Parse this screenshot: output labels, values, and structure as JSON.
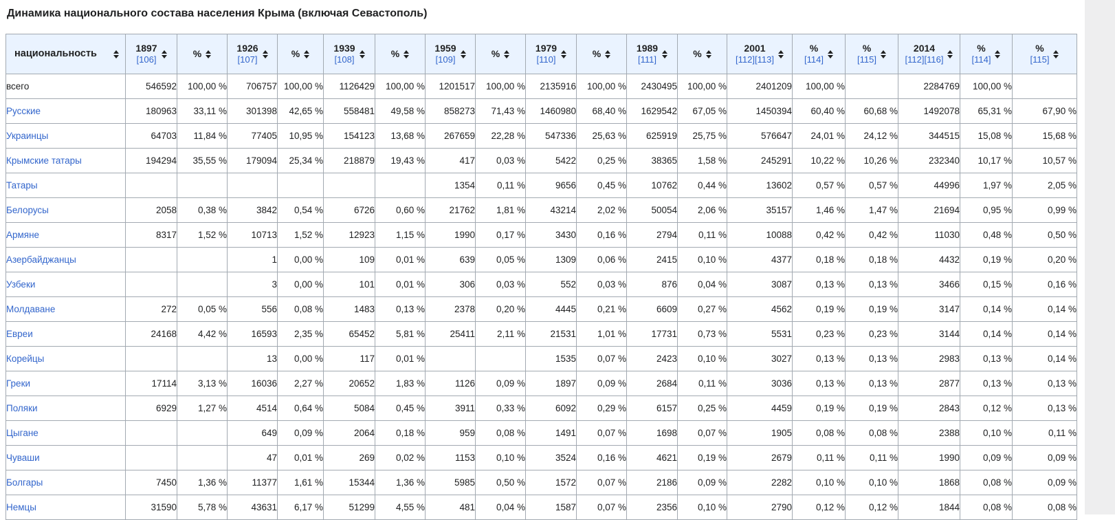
{
  "title": "Динамика национального состава населения Крыма (включая Севастополь)",
  "colors": {
    "link": "#3366cc",
    "header_bg": "#eaf3ff",
    "border": "#a2a9b1"
  },
  "table": {
    "columns": [
      {
        "label": "национальность",
        "ref": ""
      },
      {
        "label": "1897",
        "ref": "[106]"
      },
      {
        "label": "%",
        "ref": ""
      },
      {
        "label": "1926",
        "ref": "[107]"
      },
      {
        "label": "%",
        "ref": ""
      },
      {
        "label": "1939",
        "ref": "[108]"
      },
      {
        "label": "%",
        "ref": ""
      },
      {
        "label": "1959",
        "ref": "[109]"
      },
      {
        "label": "%",
        "ref": ""
      },
      {
        "label": "1979",
        "ref": "[110]"
      },
      {
        "label": "%",
        "ref": ""
      },
      {
        "label": "1989",
        "ref": "[111]"
      },
      {
        "label": "%",
        "ref": ""
      },
      {
        "label": "2001",
        "ref": "[112][113]"
      },
      {
        "label": "%",
        "ref": "[114]"
      },
      {
        "label": "%",
        "ref": "[115]"
      },
      {
        "label": "2014",
        "ref": "[112][116]"
      },
      {
        "label": "%",
        "ref": "[114]"
      },
      {
        "label": "%",
        "ref": "[115]"
      }
    ],
    "rows": [
      {
        "name": "всего",
        "link": false,
        "values": [
          "546592",
          "100,00 %",
          "706757",
          "100,00 %",
          "1126429",
          "100,00 %",
          "1201517",
          "100,00 %",
          "2135916",
          "100,00 %",
          "2430495",
          "100,00 %",
          "2401209",
          "100,00 %",
          "",
          "2284769",
          "100,00 %",
          ""
        ]
      },
      {
        "name": "Русские",
        "link": true,
        "values": [
          "180963",
          "33,11 %",
          "301398",
          "42,65 %",
          "558481",
          "49,58 %",
          "858273",
          "71,43 %",
          "1460980",
          "68,40 %",
          "1629542",
          "67,05 %",
          "1450394",
          "60,40 %",
          "60,68 %",
          "1492078",
          "65,31 %",
          "67,90 %"
        ]
      },
      {
        "name": "Украинцы",
        "link": true,
        "values": [
          "64703",
          "11,84 %",
          "77405",
          "10,95 %",
          "154123",
          "13,68 %",
          "267659",
          "22,28 %",
          "547336",
          "25,63 %",
          "625919",
          "25,75 %",
          "576647",
          "24,01 %",
          "24,12 %",
          "344515",
          "15,08 %",
          "15,68 %"
        ]
      },
      {
        "name": "Крымские татары",
        "link": true,
        "values": [
          "194294",
          "35,55 %",
          "179094",
          "25,34 %",
          "218879",
          "19,43 %",
          "417",
          "0,03 %",
          "5422",
          "0,25 %",
          "38365",
          "1,58 %",
          "245291",
          "10,22 %",
          "10,26 %",
          "232340",
          "10,17 %",
          "10,57 %"
        ]
      },
      {
        "name": "Татары",
        "link": true,
        "values": [
          "",
          "",
          "",
          "",
          "",
          "",
          "1354",
          "0,11 %",
          "9656",
          "0,45 %",
          "10762",
          "0,44 %",
          "13602",
          "0,57 %",
          "0,57 %",
          "44996",
          "1,97 %",
          "2,05 %"
        ]
      },
      {
        "name": "Белорусы",
        "link": true,
        "values": [
          "2058",
          "0,38 %",
          "3842",
          "0,54 %",
          "6726",
          "0,60 %",
          "21762",
          "1,81 %",
          "43214",
          "2,02 %",
          "50054",
          "2,06 %",
          "35157",
          "1,46 %",
          "1,47 %",
          "21694",
          "0,95 %",
          "0,99 %"
        ]
      },
      {
        "name": "Армяне",
        "link": true,
        "values": [
          "8317",
          "1,52 %",
          "10713",
          "1,52 %",
          "12923",
          "1,15 %",
          "1990",
          "0,17 %",
          "3430",
          "0,16 %",
          "2794",
          "0,11 %",
          "10088",
          "0,42 %",
          "0,42 %",
          "11030",
          "0,48 %",
          "0,50 %"
        ]
      },
      {
        "name": "Азербайджанцы",
        "link": true,
        "values": [
          "",
          "",
          "1",
          "0,00 %",
          "109",
          "0,01 %",
          "639",
          "0,05 %",
          "1309",
          "0,06 %",
          "2415",
          "0,10 %",
          "4377",
          "0,18 %",
          "0,18 %",
          "4432",
          "0,19 %",
          "0,20 %"
        ]
      },
      {
        "name": "Узбеки",
        "link": true,
        "values": [
          "",
          "",
          "3",
          "0,00 %",
          "101",
          "0,01 %",
          "306",
          "0,03 %",
          "552",
          "0,03 %",
          "876",
          "0,04 %",
          "3087",
          "0,13 %",
          "0,13 %",
          "3466",
          "0,15 %",
          "0,16 %"
        ]
      },
      {
        "name": "Молдаване",
        "link": true,
        "values": [
          "272",
          "0,05 %",
          "556",
          "0,08 %",
          "1483",
          "0,13 %",
          "2378",
          "0,20 %",
          "4445",
          "0,21 %",
          "6609",
          "0,27 %",
          "4562",
          "0,19 %",
          "0,19 %",
          "3147",
          "0,14 %",
          "0,14 %"
        ]
      },
      {
        "name": "Евреи",
        "link": true,
        "values": [
          "24168",
          "4,42 %",
          "16593",
          "2,35 %",
          "65452",
          "5,81 %",
          "25411",
          "2,11 %",
          "21531",
          "1,01 %",
          "17731",
          "0,73 %",
          "5531",
          "0,23 %",
          "0,23 %",
          "3144",
          "0,14 %",
          "0,14 %"
        ]
      },
      {
        "name": "Корейцы",
        "link": true,
        "values": [
          "",
          "",
          "13",
          "0,00 %",
          "117",
          "0,01 %",
          "",
          "",
          "1535",
          "0,07 %",
          "2423",
          "0,10 %",
          "3027",
          "0,13 %",
          "0,13 %",
          "2983",
          "0,13 %",
          "0,14 %"
        ]
      },
      {
        "name": "Греки",
        "link": true,
        "values": [
          "17114",
          "3,13 %",
          "16036",
          "2,27 %",
          "20652",
          "1,83 %",
          "1126",
          "0,09 %",
          "1897",
          "0,09 %",
          "2684",
          "0,11 %",
          "3036",
          "0,13 %",
          "0,13 %",
          "2877",
          "0,13 %",
          "0,13 %"
        ]
      },
      {
        "name": "Поляки",
        "link": true,
        "values": [
          "6929",
          "1,27 %",
          "4514",
          "0,64 %",
          "5084",
          "0,45 %",
          "3911",
          "0,33 %",
          "6092",
          "0,29 %",
          "6157",
          "0,25 %",
          "4459",
          "0,19 %",
          "0,19 %",
          "2843",
          "0,12 %",
          "0,13 %"
        ]
      },
      {
        "name": "Цыгане",
        "link": true,
        "values": [
          "",
          "",
          "649",
          "0,09 %",
          "2064",
          "0,18 %",
          "959",
          "0,08 %",
          "1491",
          "0,07 %",
          "1698",
          "0,07 %",
          "1905",
          "0,08 %",
          "0,08 %",
          "2388",
          "0,10 %",
          "0,11 %"
        ]
      },
      {
        "name": "Чуваши",
        "link": true,
        "values": [
          "",
          "",
          "47",
          "0,01 %",
          "269",
          "0,02 %",
          "1153",
          "0,10 %",
          "3524",
          "0,16 %",
          "4621",
          "0,19 %",
          "2679",
          "0,11 %",
          "0,11 %",
          "1990",
          "0,09 %",
          "0,09 %"
        ]
      },
      {
        "name": "Болгары",
        "link": true,
        "values": [
          "7450",
          "1,36 %",
          "11377",
          "1,61 %",
          "15344",
          "1,36 %",
          "5985",
          "0,50 %",
          "1572",
          "0,07 %",
          "2186",
          "0,09 %",
          "2282",
          "0,10 %",
          "0,10 %",
          "1868",
          "0,08 %",
          "0,09 %"
        ]
      },
      {
        "name": "Немцы",
        "link": true,
        "values": [
          "31590",
          "5,78 %",
          "43631",
          "6,17 %",
          "51299",
          "4,55 %",
          "481",
          "0,04 %",
          "1587",
          "0,07 %",
          "2356",
          "0,10 %",
          "2790",
          "0,12 %",
          "0,12 %",
          "1844",
          "0,08 %",
          "0,08 %"
        ]
      }
    ]
  }
}
